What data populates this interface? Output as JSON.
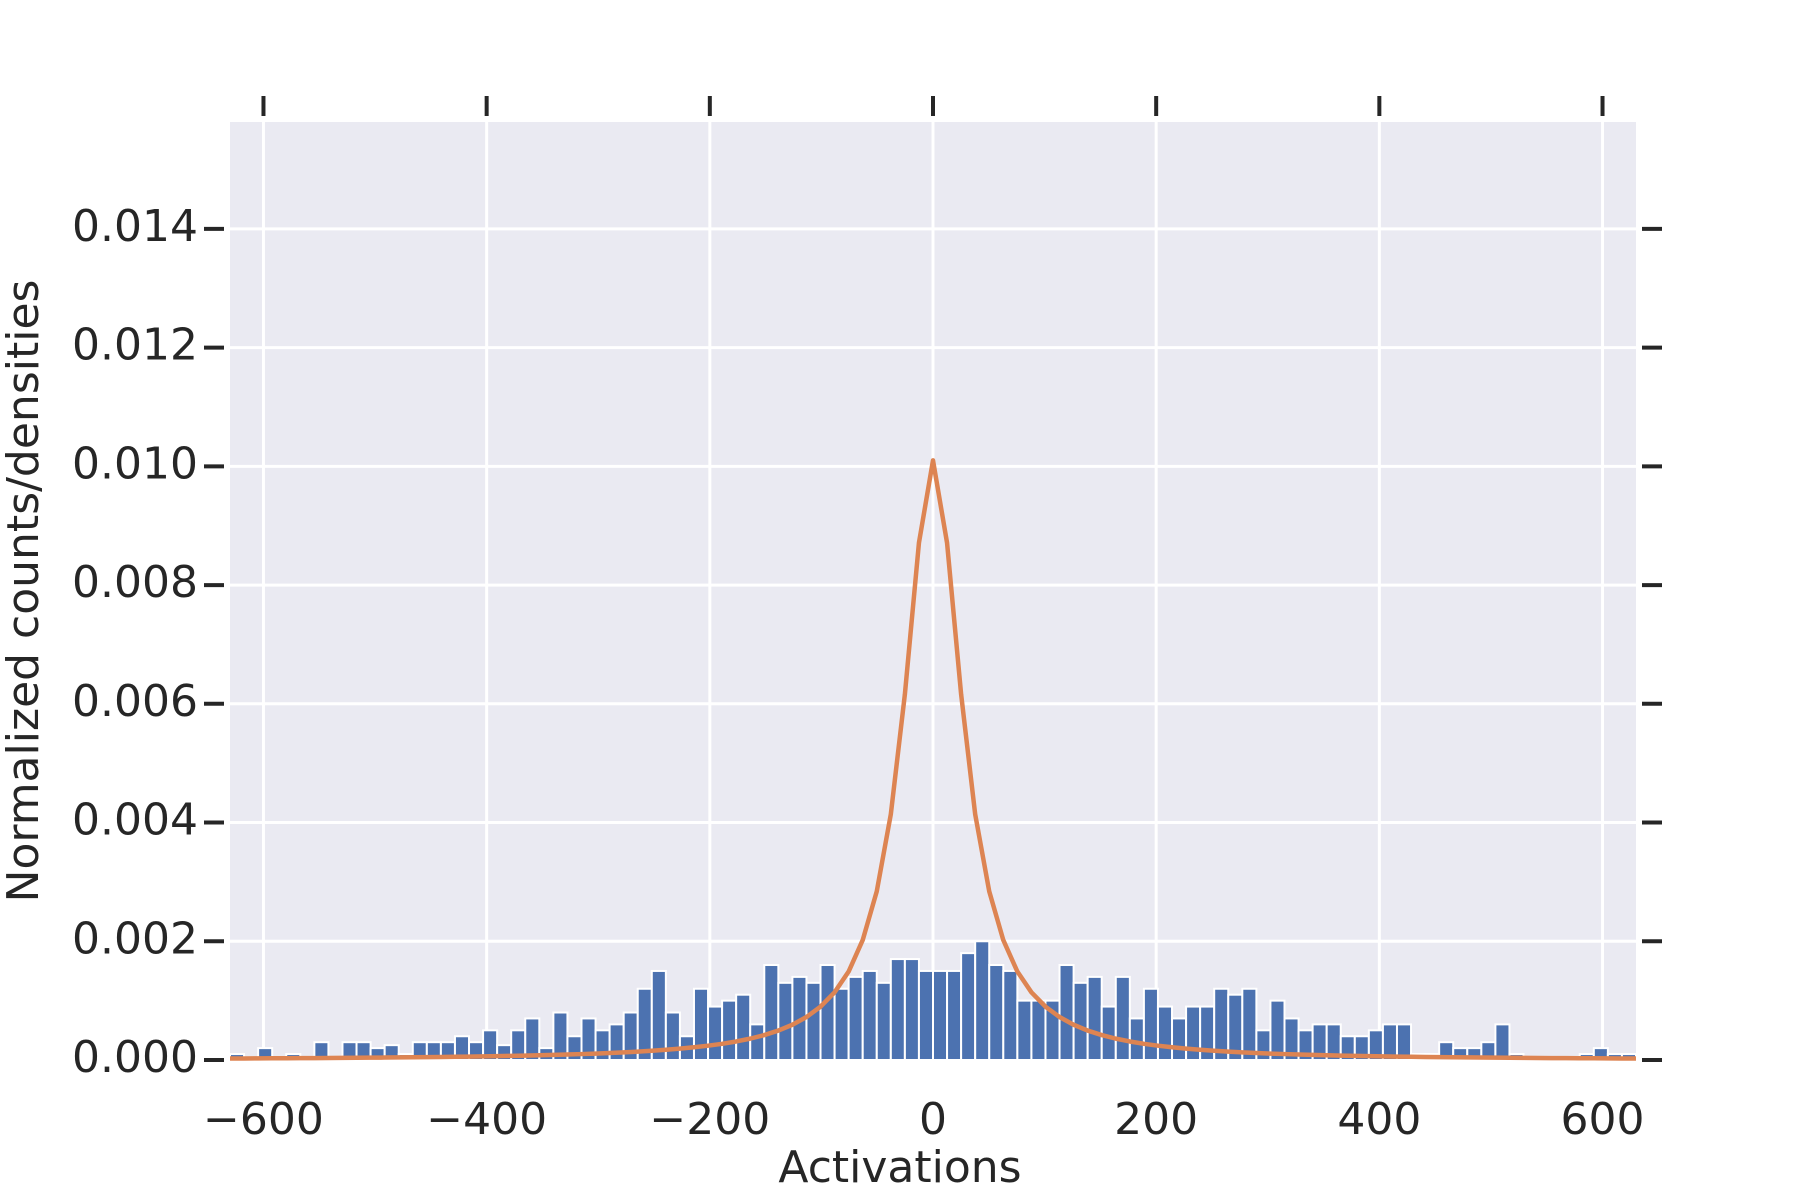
{
  "chart_data": {
    "type": "histogram",
    "xlabel": "Activations",
    "ylabel": "Normalized counts/densities",
    "color": "#4c72b0",
    "bins": [
      -630,
      -617.4,
      -604.8,
      -592.2,
      -579.6,
      -567,
      -554.4,
      -541.8,
      -529.2,
      -516.6,
      -504,
      -491.4,
      -478.8,
      -466.2,
      -453.6,
      -441,
      -428.4,
      -415.8,
      -403.2,
      -390.6,
      -378,
      -365.4,
      -352.8,
      -340.2,
      -327.6,
      -315,
      -302.4,
      -289.8,
      -277.2,
      -264.6,
      -252,
      -239.4,
      -226.8,
      -214.2,
      -201.6,
      -189,
      -176.4,
      -163.8,
      -151.2,
      -138.6,
      -126,
      -113.4,
      -100.8,
      -88.2,
      -75.6,
      -63,
      -50.4,
      -37.8,
      -25.2,
      -12.6,
      0,
      12.6,
      25.2,
      37.8,
      50.4,
      63,
      75.6,
      88.2,
      100.8,
      113.4,
      126,
      138.6,
      151.2,
      163.8,
      176.4,
      189,
      201.6,
      214.2,
      226.8,
      239.4,
      252,
      264.6,
      277.2,
      289.8,
      302.4,
      315,
      327.6,
      340.2,
      352.8,
      365.4,
      378,
      390.6,
      403.2,
      415.8,
      428.4,
      441,
      453.6,
      466.2,
      478.8,
      491.4,
      504,
      516.6,
      529.2,
      541.8,
      554.4,
      567,
      579.6,
      592.2,
      604.8,
      617.4,
      630
    ],
    "values": [
      0.0001,
      0,
      0.0002,
      0,
      0.0001,
      0,
      0.0003,
      0,
      0.0003,
      0.0003,
      0.0002,
      0.00025,
      0.0001,
      0.0003,
      0.0003,
      0.0003,
      0.0004,
      0.0003,
      0.0005,
      0.00025,
      0.0005,
      0.0007,
      0.0002,
      0.0008,
      0.0004,
      0.0007,
      0.0005,
      0.0006,
      0.0008,
      0.0012,
      0.0015,
      0.0008,
      0.0004,
      0.0012,
      0.0009,
      0.001,
      0.0011,
      0.0006,
      0.0016,
      0.0013,
      0.0014,
      0.0013,
      0.0016,
      0.0012,
      0.0014,
      0.0015,
      0.0013,
      0.0017,
      0.0017,
      0.0015,
      0.0015,
      0.0015,
      0.0018,
      0.002,
      0.0016,
      0.0015,
      0.001,
      0.001,
      0.001,
      0.0016,
      0.0013,
      0.0014,
      0.0009,
      0.0014,
      0.0007,
      0.0012,
      0.0009,
      0.0007,
      0.0009,
      0.0009,
      0.0012,
      0.0011,
      0.0012,
      0.0005,
      0.001,
      0.0007,
      0.0005,
      0.0006,
      0.0006,
      0.0004,
      0.0004,
      0.0005,
      0.0006,
      0.0006,
      0.0001,
      0.0001,
      0.0003,
      0.0002,
      0.0002,
      0.0003,
      0.0006,
      0.0001,
      0,
      0,
      0,
      0,
      0.0001,
      0.0002,
      0.0001,
      0.0001
    ],
    "overlay": {
      "type": "line",
      "color": "#dd8452",
      "x": [
        -630,
        -617.4,
        -604.8,
        -592.2,
        -579.6,
        -567,
        -554.4,
        -541.8,
        -529.2,
        -516.6,
        -504,
        -491.4,
        -478.8,
        -466.2,
        -453.6,
        -441,
        -428.4,
        -415.8,
        -403.2,
        -390.6,
        -378,
        -365.4,
        -352.8,
        -340.2,
        -327.6,
        -315,
        -302.4,
        -289.8,
        -277.2,
        -264.6,
        -252,
        -239.4,
        -226.8,
        -214.2,
        -201.6,
        -189,
        -176.4,
        -163.8,
        -151.2,
        -138.6,
        -126,
        -113.4,
        -100.8,
        -88.2,
        -75.6,
        -63,
        -50.4,
        -37.8,
        -25.2,
        -12.6,
        0,
        12.6,
        25.2,
        37.8,
        50.4,
        63,
        75.6,
        88.2,
        100.8,
        113.4,
        126,
        138.6,
        151.2,
        163.8,
        176.4,
        189,
        201.6,
        214.2,
        226.8,
        239.4,
        252,
        264.6,
        277.2,
        289.8,
        302.4,
        315,
        327.6,
        340.2,
        352.8,
        365.4,
        378,
        390.6,
        403.2,
        415.8,
        428.4,
        441,
        453.6,
        466.2,
        478.8,
        491.4,
        504,
        516.6,
        529.2,
        541.8,
        554.4,
        567,
        579.6,
        592.2,
        604.8,
        617.4,
        630
      ],
      "values": [
        2.52e-05,
        2.62e-05,
        2.73e-05,
        2.85e-05,
        2.97e-05,
        3.11e-05,
        3.25e-05,
        3.4e-05,
        3.57e-05,
        3.74e-05,
        3.93e-05,
        4.13e-05,
        4.35e-05,
        4.59e-05,
        4.85e-05,
        5.13e-05,
        5.43e-05,
        5.76e-05,
        6.13e-05,
        6.53e-05,
        6.97e-05,
        7.45e-05,
        7.99e-05,
        8.59e-05,
        9.25e-05,
        0.0001,
        0.000108,
        0.000118,
        0.000129,
        0.000141,
        0.000155,
        0.000172,
        0.000191,
        0.000214,
        0.000241,
        0.000273,
        0.000312,
        0.00036,
        0.00042,
        0.000496,
        0.000594,
        0.000724,
        0.000899,
        0.00114,
        0.00149,
        0.00202,
        0.00284,
        0.00414,
        0.00616,
        0.00871,
        0.0101,
        0.00871,
        0.00616,
        0.00414,
        0.00284,
        0.00202,
        0.00149,
        0.00114,
        0.000899,
        0.000724,
        0.000594,
        0.000496,
        0.00042,
        0.00036,
        0.000312,
        0.000273,
        0.000241,
        0.000214,
        0.000191,
        0.000172,
        0.000155,
        0.000141,
        0.000129,
        0.000118,
        0.000108,
        0.0001,
        9.25e-05,
        8.59e-05,
        7.99e-05,
        7.45e-05,
        6.97e-05,
        6.53e-05,
        6.13e-05,
        5.76e-05,
        5.43e-05,
        5.13e-05,
        4.85e-05,
        4.59e-05,
        4.35e-05,
        4.13e-05,
        3.93e-05,
        3.74e-05,
        3.57e-05,
        3.4e-05,
        3.25e-05,
        3.11e-05,
        2.97e-05,
        2.85e-05,
        2.73e-05,
        2.62e-05,
        2.52e-05
      ]
    },
    "xlim": [
      -630,
      630
    ],
    "ylim": [
      0,
      0.0158
    ],
    "xticks": [
      {
        "value": -600,
        "label": "−600"
      },
      {
        "value": -400,
        "label": "−400"
      },
      {
        "value": -200,
        "label": "−200"
      },
      0,
      200,
      400,
      600
    ],
    "yticks": [
      {
        "value": 0,
        "label": "0.000"
      },
      {
        "value": 0.002,
        "label": "0.002"
      },
      {
        "value": 0.004,
        "label": "0.004"
      },
      {
        "value": 0.006,
        "label": "0.006"
      },
      {
        "value": 0.008,
        "label": "0.008"
      },
      {
        "value": 0.01,
        "label": "0.010"
      },
      {
        "value": 0.012,
        "label": "0.012"
      },
      {
        "value": 0.014,
        "label": "0.014"
      }
    ],
    "grid": true
  }
}
